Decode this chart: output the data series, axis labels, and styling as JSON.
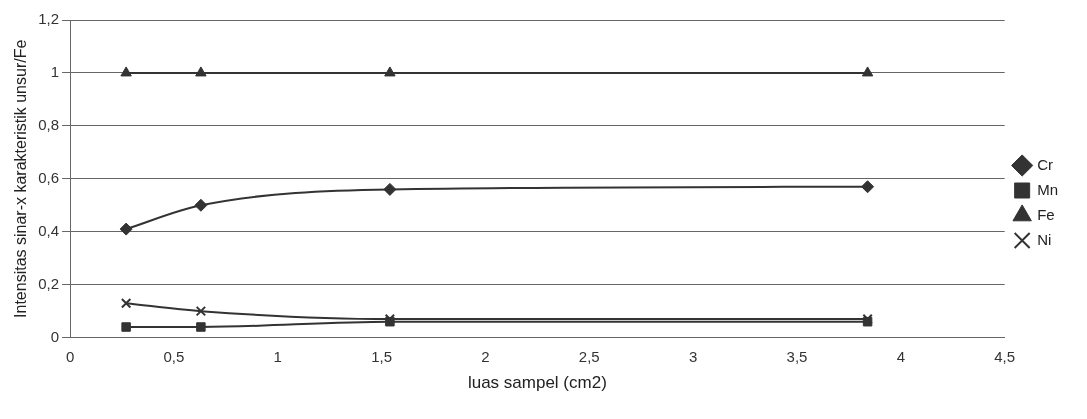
{
  "chart_data": {
    "type": "line",
    "xlabel": "luas sampel (cm2)",
    "ylabel": "Intensitas sinar-x karakteristik unsur/Fe",
    "xlim": [
      0,
      4.5
    ],
    "xticks": [
      0,
      {
        "value": 0.5,
        "label": "0,5"
      },
      1,
      {
        "value": 1.5,
        "label": "1,5"
      },
      2,
      {
        "value": 2.5,
        "label": "2,5"
      },
      3,
      {
        "value": 3.5,
        "label": "3,5"
      },
      4,
      {
        "value": 4.5,
        "label": "4,5"
      }
    ],
    "ylim": [
      0,
      1.2
    ],
    "yticks": [
      0,
      {
        "value": 0.2,
        "label": "0,2"
      },
      {
        "value": 0.4,
        "label": "0,4"
      },
      {
        "value": 0.6,
        "label": "0,6"
      },
      {
        "value": 0.8,
        "label": "0,8"
      },
      1,
      {
        "value": 1.2,
        "label": "1,2"
      }
    ],
    "grid": "y",
    "legend": "right",
    "x": [
      0.27,
      0.63,
      1.54,
      3.84
    ],
    "series": [
      {
        "name": "Cr",
        "color": "#333333",
        "marker": "diamond",
        "values": [
          0.41,
          0.5,
          0.56,
          0.57
        ]
      },
      {
        "name": "Mn",
        "color": "#333333",
        "marker": "square",
        "values": [
          0.04,
          0.04,
          0.06,
          0.06
        ]
      },
      {
        "name": "Fe",
        "color": "#333333",
        "marker": "triangle",
        "values": [
          1,
          1,
          1,
          1
        ]
      },
      {
        "name": "Ni",
        "color": "#333333",
        "marker": "cross",
        "values": [
          0.13,
          0.1,
          0.07,
          0.07
        ]
      }
    ]
  }
}
